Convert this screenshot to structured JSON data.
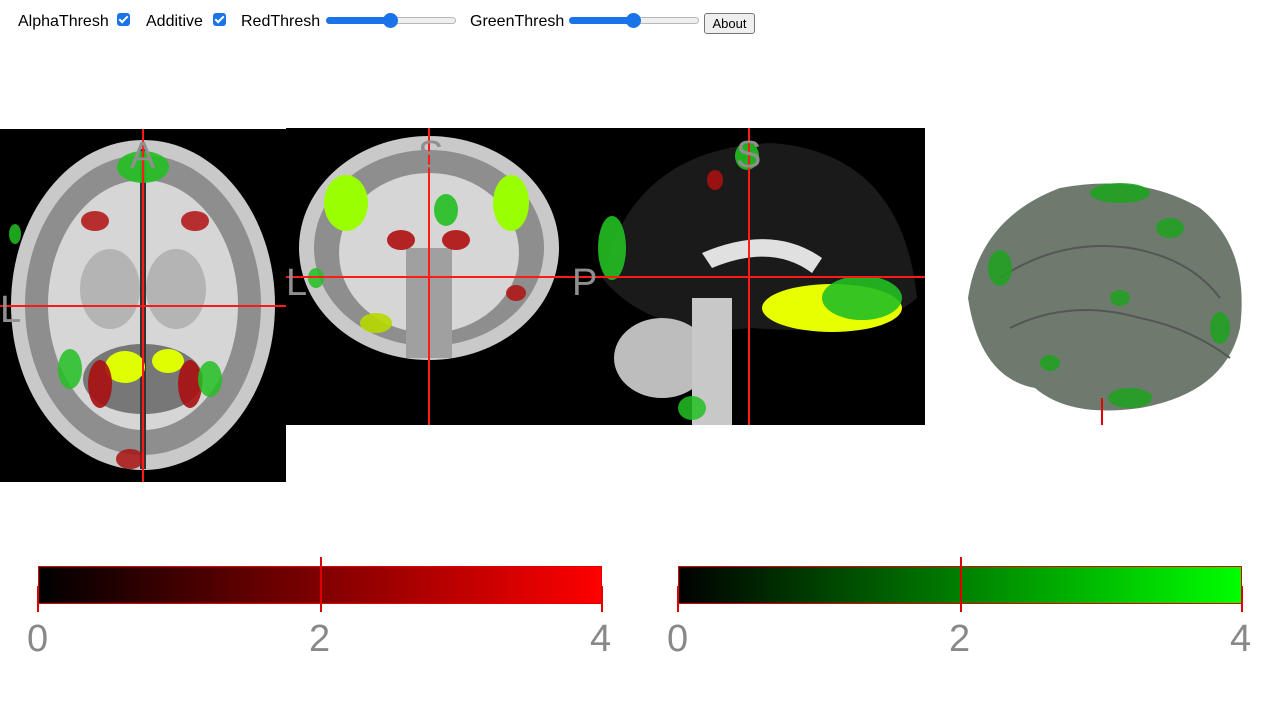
{
  "toolbar": {
    "alpha_thresh_label": "AlphaThresh",
    "alpha_thresh_checked": true,
    "additive_label": "Additive",
    "additive_checked": true,
    "red_thresh_label": "RedThresh",
    "red_thresh_value": 0.5,
    "green_thresh_label": "GreenThresh",
    "green_thresh_value": 0.5,
    "about_label": "About"
  },
  "views": {
    "axial": {
      "top_label": "A",
      "left_label": "L"
    },
    "coronal": {
      "top_label": "S",
      "left_label": "L"
    },
    "sagittal": {
      "top_label": "S",
      "left_label": "P"
    }
  },
  "colorbars": [
    {
      "name": "red",
      "color_start": "#000000",
      "color_end": "#ff0000",
      "ticks": [
        "0",
        "2",
        "4"
      ]
    },
    {
      "name": "green",
      "color_start": "#000000",
      "color_end": "#00ff00",
      "ticks": [
        "0",
        "2",
        "4"
      ]
    }
  ],
  "colors": {
    "crosshair": "#ff0000",
    "slider_accent": "#1a73e8",
    "orientation_label": "#8f8f8f",
    "tick_label": "#888888"
  }
}
